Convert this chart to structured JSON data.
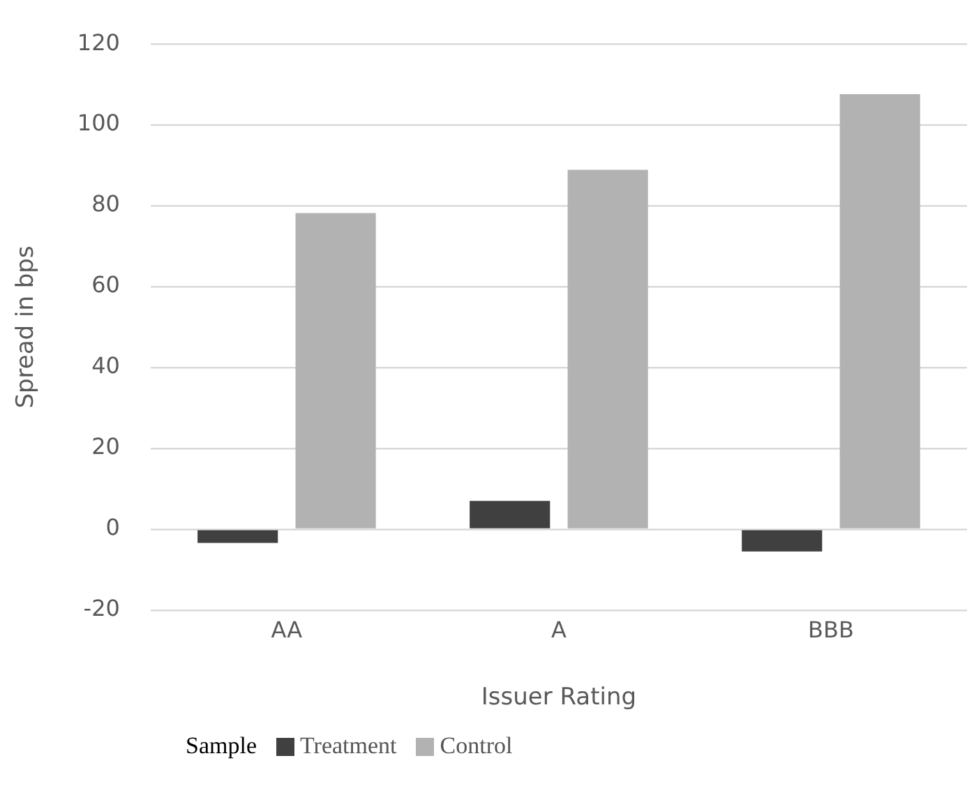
{
  "chart_data": {
    "type": "bar",
    "xlabel": "Issuer Rating",
    "ylabel": "Spread in bps",
    "legend_title": "Sample",
    "categories": [
      "AA",
      "A",
      "BBB"
    ],
    "series": [
      {
        "name": "Treatment",
        "color": "#404040",
        "values": [
          -3.4,
          7.0,
          -5.5
        ]
      },
      {
        "name": "Control",
        "color": "#b2b2b2",
        "values": [
          78.2,
          88.9,
          107.6
        ]
      }
    ],
    "ylim": [
      -20,
      120
    ],
    "yticks": [
      -20,
      0,
      20,
      40,
      60,
      80,
      100,
      120
    ],
    "grid": "y",
    "legend": "bottom"
  }
}
